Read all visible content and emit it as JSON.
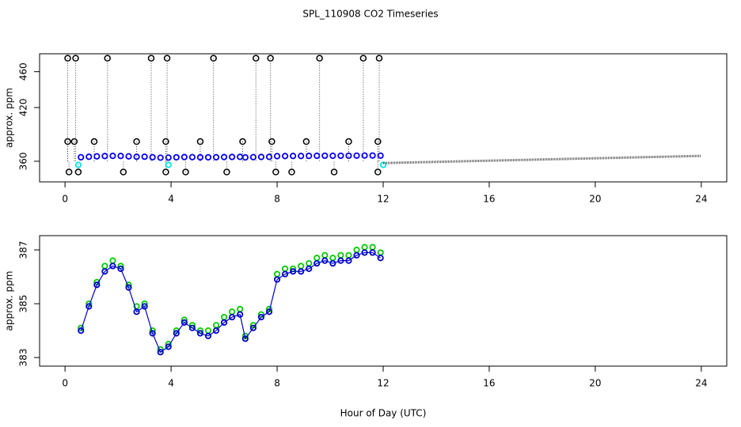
{
  "title": "SPL_110908  CO2 Timeseries",
  "chart_data": [
    {
      "type": "scatter",
      "ylabel": "approx. ppm",
      "xlim": [
        -0.96,
        24.96
      ],
      "xticks": [
        0,
        4,
        8,
        12,
        16,
        20,
        24
      ],
      "ylim": [
        337,
        480
      ],
      "yticks": [
        360,
        420,
        460
      ],
      "series": [
        {
          "color": "#0000ff",
          "mode": "points",
          "x": [
            0.6,
            0.9,
            1.2,
            1.5,
            1.8,
            2.1,
            2.4,
            2.7,
            3.0,
            3.3,
            3.6,
            3.9,
            4.2,
            4.5,
            4.8,
            5.1,
            5.4,
            5.7,
            6.0,
            6.3,
            6.6,
            6.8,
            7.1,
            7.4,
            7.7,
            8.0,
            8.3,
            8.6,
            8.9,
            9.2,
            9.5,
            9.8,
            10.1,
            10.4,
            10.7,
            11.0,
            11.3,
            11.6,
            11.9
          ],
          "values": [
            364.5,
            365.0,
            365.5,
            365.8,
            366.0,
            365.9,
            365.5,
            365.0,
            365.1,
            364.5,
            364.0,
            364.1,
            364.4,
            364.7,
            364.6,
            364.4,
            364.4,
            364.5,
            364.7,
            364.8,
            364.9,
            364.3,
            364.6,
            364.8,
            364.9,
            365.7,
            365.8,
            365.9,
            365.9,
            366.0,
            366.1,
            366.2,
            366.1,
            366.2,
            366.2,
            366.3,
            366.4,
            366.4,
            366.3
          ]
        },
        {
          "color": "#000000",
          "mode": "flags",
          "x": [
            0.1,
            0.4,
            1.6,
            3.25,
            3.85,
            5.6,
            7.2,
            7.75,
            9.6,
            11.25,
            11.85,
            0.1,
            0.35,
            1.1,
            2.7,
            3.8,
            5.1,
            6.7,
            7.8,
            9.1,
            10.7,
            11.8,
            0.15,
            0.5,
            2.2,
            3.8,
            4.55,
            6.1,
            7.95,
            8.55,
            10.15,
            11.8
          ],
          "values": [
            475,
            475,
            475,
            475,
            475,
            475,
            475,
            475,
            475,
            475,
            475,
            382,
            382,
            382,
            382,
            382,
            382,
            382,
            382,
            382,
            382,
            382,
            348,
            348,
            348,
            348,
            348,
            348,
            348,
            348,
            348,
            348
          ]
        },
        {
          "color": "#00e5ee",
          "mode": "points",
          "x": [
            0.5,
            3.9,
            12.0
          ],
          "values": [
            356,
            356,
            356
          ]
        },
        {
          "color": "#555555",
          "mode": "dotted",
          "x": [
            12,
            24
          ],
          "values": [
            358,
            366
          ]
        }
      ]
    },
    {
      "type": "scatter",
      "ylabel": "approx. ppm",
      "xlabel": "Hour of Day (UTC)",
      "xlim": [
        -0.96,
        24.96
      ],
      "xticks": [
        0,
        4,
        8,
        12,
        16,
        20,
        24
      ],
      "ylim": [
        382.68,
        387.53
      ],
      "yticks": [
        383,
        385,
        387
      ],
      "series": [
        {
          "color": "#00cc00",
          "mode": "points",
          "x": [
            0.6,
            0.9,
            1.2,
            1.5,
            1.8,
            2.1,
            2.4,
            2.7,
            3.0,
            3.3,
            3.6,
            3.9,
            4.2,
            4.5,
            4.8,
            5.1,
            5.4,
            5.7,
            6.0,
            6.3,
            6.6,
            6.8,
            7.1,
            7.4,
            7.7,
            8.0,
            8.3,
            8.6,
            8.9,
            9.2,
            9.5,
            9.8,
            10.1,
            10.4,
            10.7,
            11.0,
            11.3,
            11.6,
            11.9
          ],
          "values": [
            384.1,
            385.0,
            385.8,
            386.4,
            386.6,
            386.4,
            385.7,
            384.9,
            385.0,
            384.0,
            383.3,
            383.5,
            384.0,
            384.4,
            384.2,
            384.0,
            384.0,
            384.2,
            384.5,
            384.7,
            384.8,
            383.8,
            384.2,
            384.6,
            384.8,
            386.1,
            386.3,
            386.3,
            386.4,
            386.5,
            386.7,
            386.8,
            386.7,
            386.8,
            386.8,
            387.0,
            387.1,
            387.1,
            386.9
          ]
        },
        {
          "color": "#0000cc",
          "mode": "line+points",
          "x": [
            0.6,
            0.9,
            1.2,
            1.5,
            1.8,
            2.1,
            2.4,
            2.7,
            3.0,
            3.3,
            3.6,
            3.9,
            4.2,
            4.5,
            4.8,
            5.1,
            5.4,
            5.7,
            6.0,
            6.3,
            6.6,
            6.8,
            7.1,
            7.4,
            7.7,
            8.0,
            8.3,
            8.6,
            8.9,
            9.2,
            9.5,
            9.8,
            10.1,
            10.4,
            10.7,
            11.0,
            11.3,
            11.6,
            11.9
          ],
          "values": [
            384.0,
            384.9,
            385.7,
            386.2,
            386.4,
            386.3,
            385.6,
            384.7,
            384.9,
            383.9,
            383.2,
            383.4,
            383.9,
            384.3,
            384.1,
            383.9,
            383.8,
            384.0,
            384.3,
            384.5,
            384.6,
            383.7,
            384.1,
            384.5,
            384.7,
            385.9,
            386.1,
            386.2,
            386.2,
            386.3,
            386.5,
            386.6,
            386.5,
            386.6,
            386.6,
            386.8,
            386.9,
            386.9,
            386.7
          ]
        }
      ]
    }
  ]
}
